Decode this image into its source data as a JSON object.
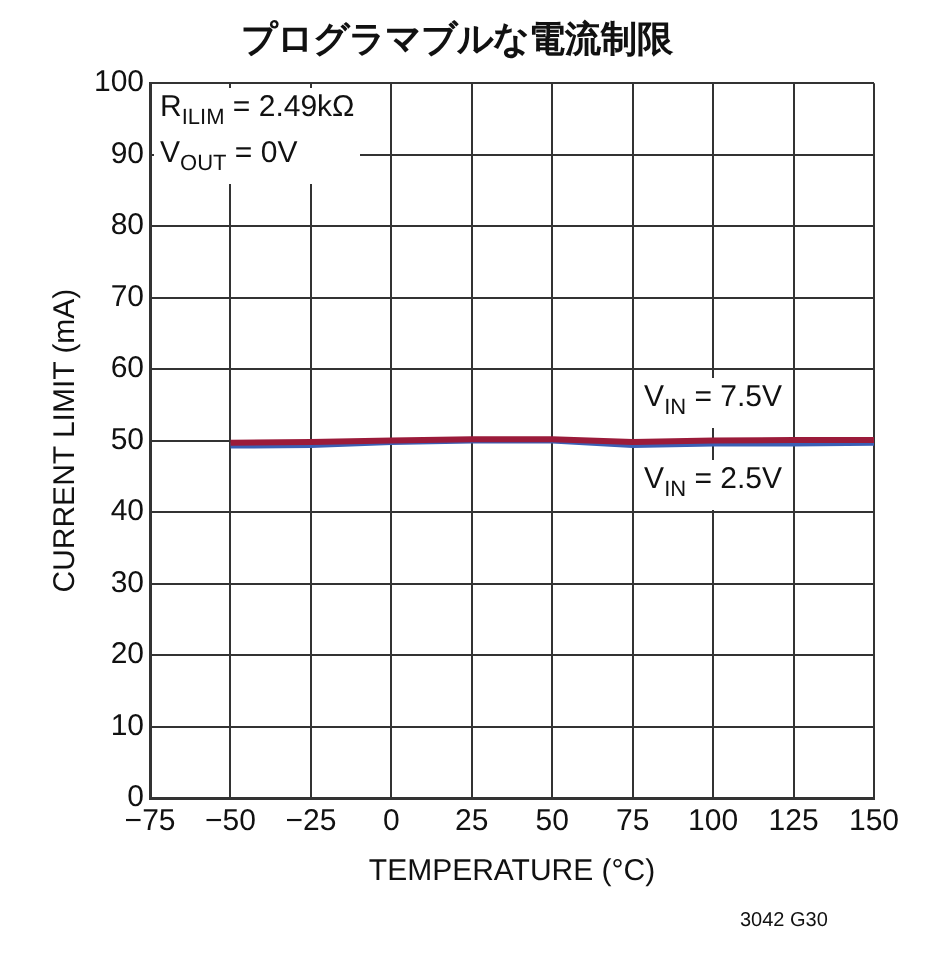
{
  "chart_data": {
    "type": "line",
    "title": "プログラマブルな電流制限",
    "xlabel": "TEMPERATURE (°C)",
    "ylabel": "CURRENT LIMIT (mA)",
    "x": [
      -50,
      -25,
      0,
      25,
      50,
      75,
      100,
      125,
      150
    ],
    "series": [
      {
        "name": "V$_{IN}$ = 7.5V",
        "color": "#9b1b3a",
        "values": [
          49.7,
          49.8,
          50,
          50.2,
          50.2,
          49.8,
          50,
          50.1,
          50.1
        ]
      },
      {
        "name": "V$_{IN}$ = 2.5V",
        "color": "#3a5fb5",
        "values": [
          49.3,
          49.4,
          49.8,
          50,
          50,
          49.4,
          49.6,
          49.6,
          49.7
        ]
      }
    ],
    "xlim": [
      -75,
      150
    ],
    "xticks": [
      {
        "value": -75,
        "label": "−75"
      },
      {
        "value": -50,
        "label": "−50"
      },
      {
        "value": -25,
        "label": "−25"
      },
      0,
      25,
      50,
      75,
      100,
      125,
      150
    ],
    "ylim": [
      0,
      100
    ],
    "yticks": [
      0,
      10,
      20,
      30,
      40,
      50,
      60,
      70,
      80,
      90,
      100
    ],
    "grid": true,
    "legend": false,
    "marker": "none",
    "line_style": "solid",
    "annotations": [
      "R$_{ILIM}$ = 2.49kΩ\nV$_{OUT}$ = 0V",
      "3042 G30"
    ]
  }
}
